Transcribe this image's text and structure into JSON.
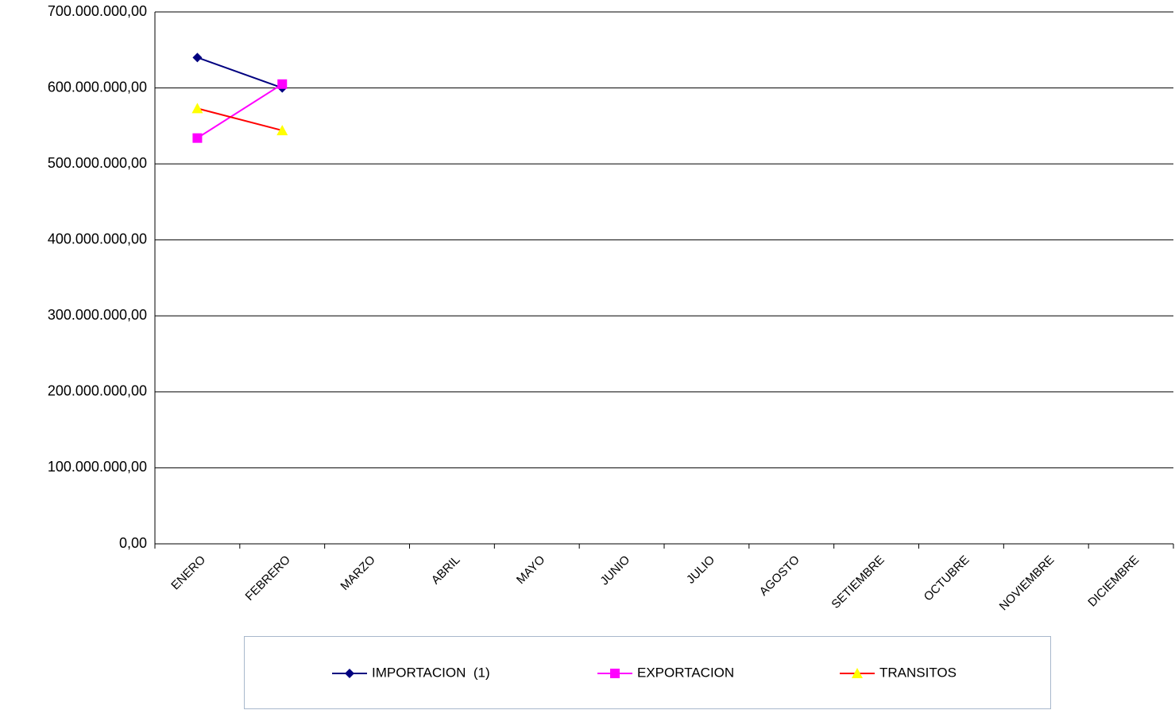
{
  "chart_data": {
    "type": "line",
    "categories": [
      "ENERO",
      "FEBRERO",
      "MARZO",
      "ABRIL",
      "MAYO",
      "JUNIO",
      "JULIO",
      "AGOSTO",
      "SETIEMBRE",
      "OCTUBRE",
      "NOVIEMBRE",
      "DICIEMBRE"
    ],
    "series": [
      {
        "name": "IMPORTACION  (1)",
        "color": "#000080",
        "marker_color": "#000080",
        "marker": "diamond",
        "values": [
          640000000,
          600000000,
          null,
          null,
          null,
          null,
          null,
          null,
          null,
          null,
          null,
          null
        ]
      },
      {
        "name": "EXPORTACION",
        "color": "#ff00ff",
        "marker_color": "#ff00ff",
        "marker": "square",
        "values": [
          534000000,
          605000000,
          null,
          null,
          null,
          null,
          null,
          null,
          null,
          null,
          null,
          null
        ]
      },
      {
        "name": "TRANSITOS",
        "color": "#ff0000",
        "marker_color": "#ffff00",
        "marker": "triangle",
        "values": [
          573000000,
          544000000,
          null,
          null,
          null,
          null,
          null,
          null,
          null,
          null,
          null,
          null
        ]
      }
    ],
    "ylim": [
      0,
      700000000
    ],
    "yticks": [
      {
        "value": 0,
        "label": "0,00"
      },
      {
        "value": 100000000,
        "label": "100.000.000,00"
      },
      {
        "value": 200000000,
        "label": "200.000.000,00"
      },
      {
        "value": 300000000,
        "label": "300.000.000,00"
      },
      {
        "value": 400000000,
        "label": "400.000.000,00"
      },
      {
        "value": 500000000,
        "label": "500.000.000,00"
      },
      {
        "value": 600000000,
        "label": "600.000.000,00"
      },
      {
        "value": 700000000,
        "label": "700.000.000,00"
      }
    ],
    "grid": true,
    "legend": "bottom"
  }
}
